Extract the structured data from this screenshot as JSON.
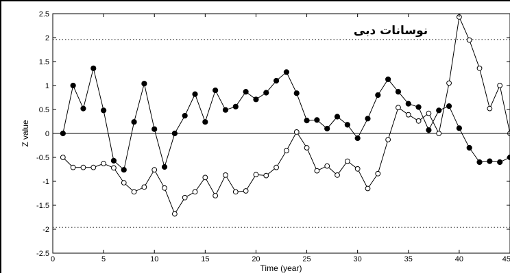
{
  "chart_data": {
    "type": "line",
    "title": "نوسانات دبی",
    "xlabel": "Time (year)",
    "ylabel": "Z value",
    "xlim": [
      0,
      45
    ],
    "ylim": [
      -2.5,
      2.5
    ],
    "xticks": [
      "0",
      "5",
      "10",
      "15",
      "20",
      "25",
      "30",
      "35",
      "40",
      "45"
    ],
    "yticks": [
      "2.5",
      "2",
      "1.5",
      "1",
      "0.5",
      "0",
      "-0.5",
      "-1",
      "-1.5",
      "-2",
      "-2.5"
    ],
    "grid": false,
    "reference_lines": [
      1.96,
      0,
      -1.96
    ],
    "reference_line_styles": [
      "dotted",
      "solid",
      "dotted"
    ],
    "series": [
      {
        "marker": "filled-circle",
        "x": [
          1,
          2,
          3,
          4,
          5,
          6,
          7,
          8,
          9,
          10,
          11,
          12,
          13,
          14,
          15,
          16,
          17,
          18,
          19,
          20,
          21,
          22,
          23,
          24,
          25,
          26,
          27,
          28,
          29,
          30,
          31,
          32,
          33,
          34,
          35,
          36,
          37,
          38,
          39,
          40,
          41,
          42,
          43,
          44,
          45
        ],
        "values": [
          0.0,
          1.0,
          0.52,
          1.36,
          0.48,
          -0.57,
          -0.76,
          0.24,
          1.04,
          0.09,
          -0.7,
          0.0,
          0.37,
          0.82,
          0.24,
          0.9,
          0.49,
          0.56,
          0.87,
          0.71,
          0.85,
          1.1,
          1.28,
          0.84,
          0.27,
          0.28,
          0.1,
          0.35,
          0.18,
          -0.1,
          0.31,
          0.8,
          1.13,
          0.87,
          0.62,
          0.55,
          0.07,
          0.48,
          0.57,
          0.11,
          -0.3,
          -0.6,
          -0.58,
          -0.6,
          -0.5
        ]
      },
      {
        "marker": "open-circle",
        "x": [
          1,
          2,
          3,
          4,
          5,
          6,
          7,
          8,
          9,
          10,
          11,
          12,
          13,
          14,
          15,
          16,
          17,
          18,
          19,
          20,
          21,
          22,
          23,
          24,
          25,
          26,
          27,
          28,
          29,
          30,
          31,
          32,
          33,
          34,
          35,
          36,
          37,
          38,
          39,
          40,
          41,
          42,
          43,
          44,
          45
        ],
        "values": [
          -0.5,
          -0.71,
          -0.71,
          -0.71,
          -0.63,
          -0.72,
          -1.03,
          -1.22,
          -1.12,
          -0.76,
          -1.14,
          -1.68,
          -1.34,
          -1.22,
          -0.92,
          -1.3,
          -0.87,
          -1.22,
          -1.2,
          -0.86,
          -0.88,
          -0.71,
          -0.36,
          0.03,
          -0.3,
          -0.78,
          -0.68,
          -0.87,
          -0.58,
          -0.74,
          -1.15,
          -0.84,
          -0.13,
          0.54,
          0.39,
          0.26,
          0.42,
          0.0,
          1.05,
          2.43,
          1.95,
          1.36,
          0.52,
          1.0,
          0.0
        ]
      }
    ]
  }
}
